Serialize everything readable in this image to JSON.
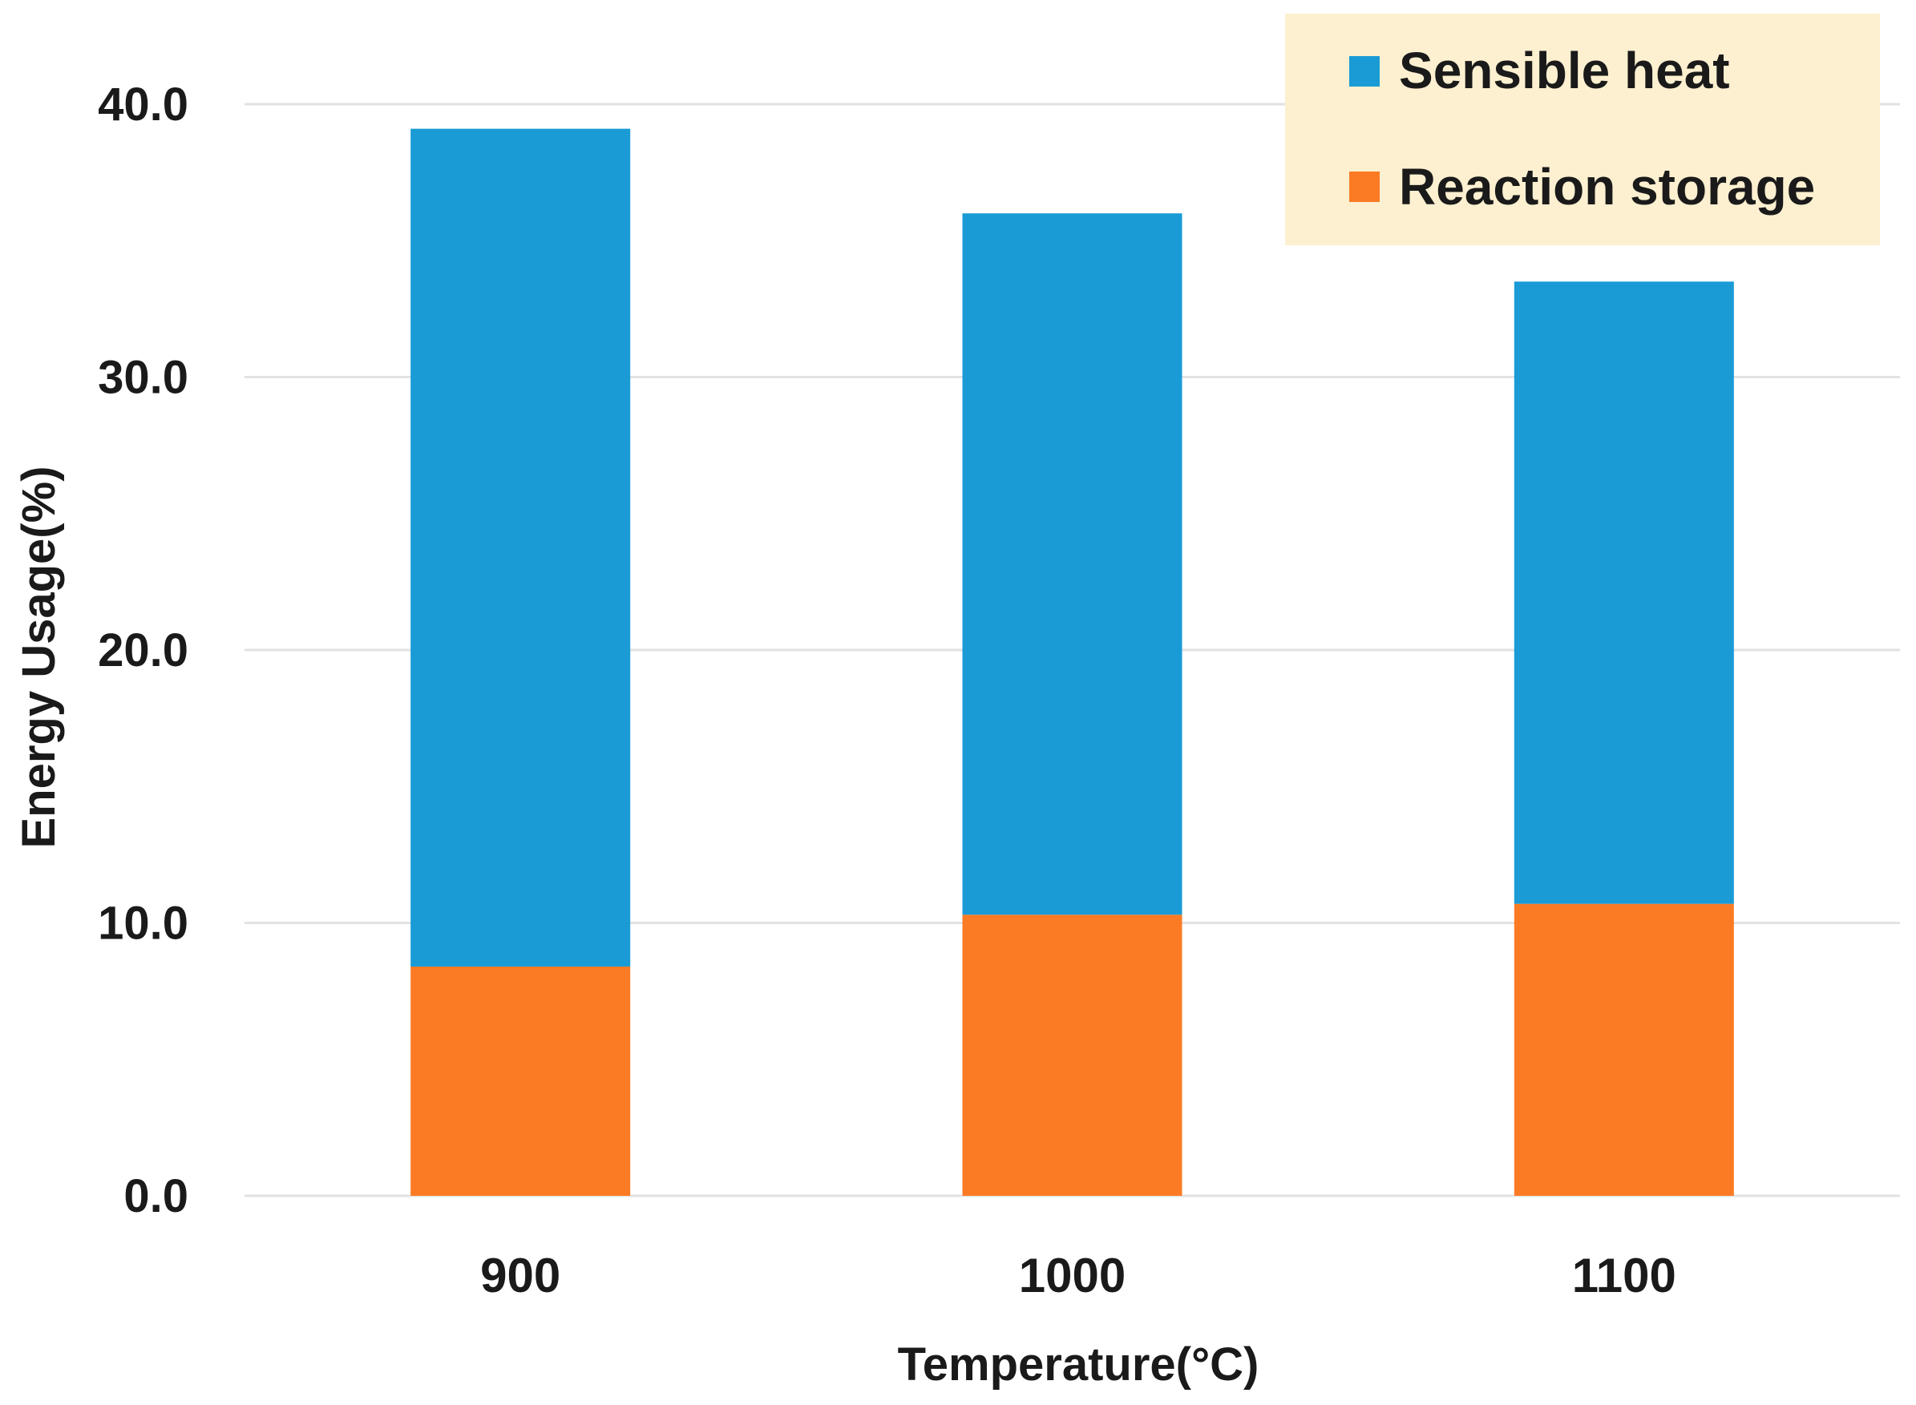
{
  "chart_data": {
    "type": "bar",
    "stacked": true,
    "title": "",
    "xlabel": "Temperature(°C)",
    "ylabel": "Energy Usage(%)",
    "ylim": [
      0,
      40
    ],
    "yticks": [
      "0.0",
      "10.0",
      "20.0",
      "30.0",
      "40.0"
    ],
    "ytick_values": [
      0,
      10,
      20,
      30,
      40
    ],
    "grid": true,
    "legend_position": "top-right",
    "categories": [
      "900",
      "1000",
      "1100"
    ],
    "series": [
      {
        "name": "Reaction storage",
        "values": [
          8.4,
          10.3,
          10.7
        ],
        "color": "#FB7B24"
      },
      {
        "name": "Sensible heat",
        "values": [
          30.7,
          25.7,
          22.8
        ],
        "color": "#1A9BD6"
      }
    ],
    "legend_order": [
      "Sensible heat",
      "Reaction storage"
    ],
    "colors": {
      "grid": "#E2E2E2",
      "legend_bg": "#FDF0D0",
      "text": "#1A1A1A"
    }
  }
}
